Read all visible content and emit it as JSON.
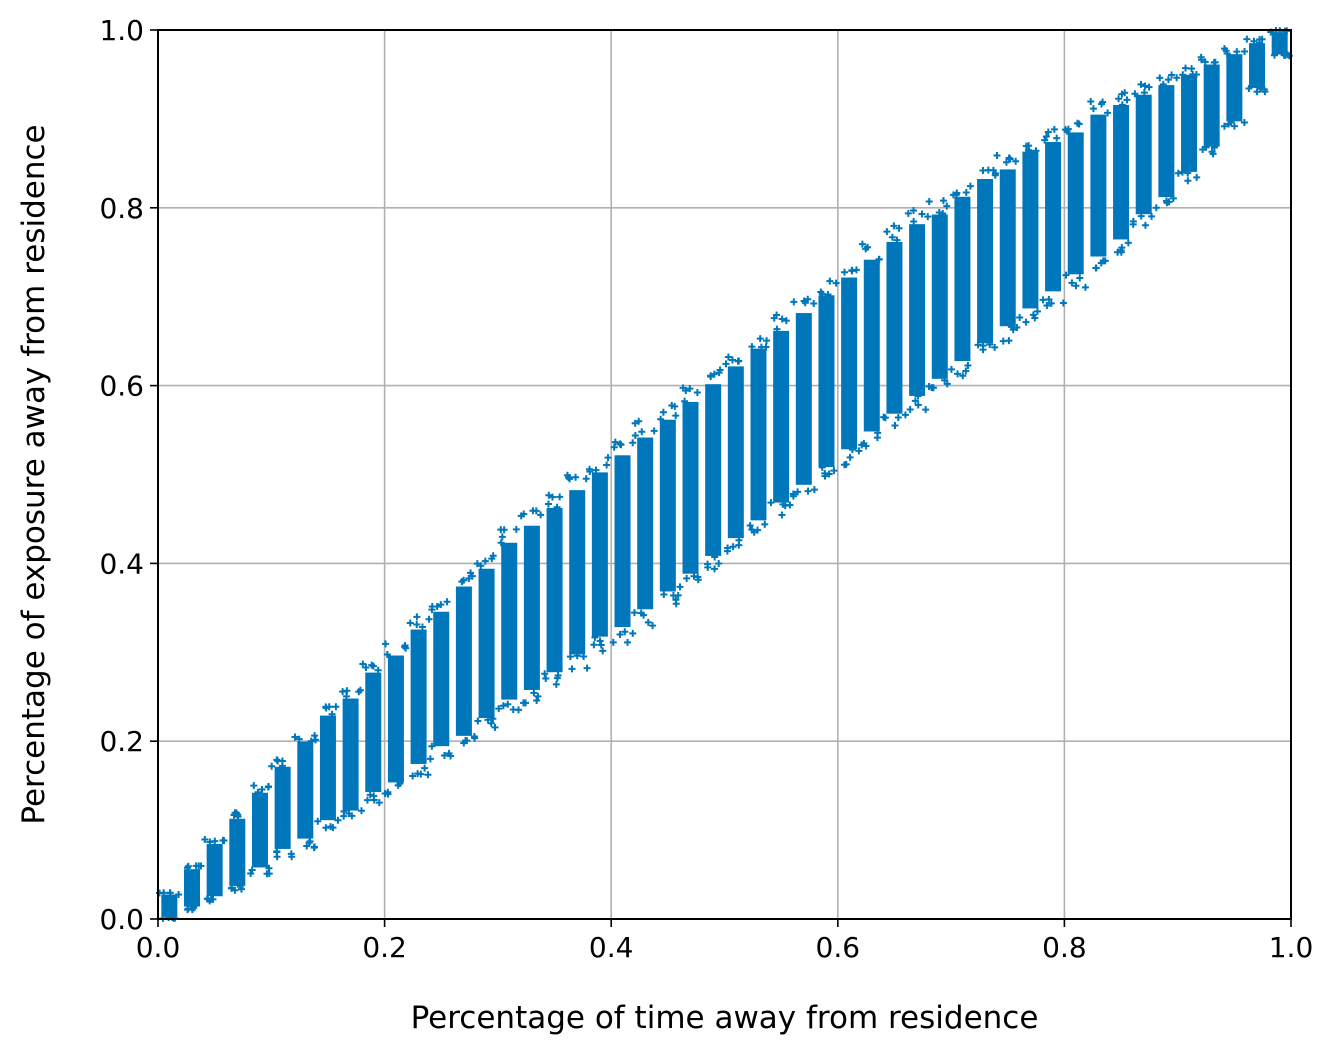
{
  "chart_data": {
    "type": "scatter",
    "title": "",
    "xlabel": "Percentage of time away from residence",
    "ylabel": "Percentage of exposure away from residence",
    "xlim": [
      0.0,
      1.0
    ],
    "ylim": [
      0.0,
      1.0
    ],
    "xticks": [
      0.0,
      0.2,
      0.4,
      0.6,
      0.8,
      1.0
    ],
    "yticks": [
      0.0,
      0.2,
      0.4,
      0.6,
      0.8,
      1.0
    ],
    "xtick_labels": [
      "0.0",
      "0.2",
      "0.4",
      "0.6",
      "0.8",
      "1.0"
    ],
    "ytick_labels": [
      "0.0",
      "0.2",
      "0.4",
      "0.6",
      "0.8",
      "1.0"
    ],
    "grid": true,
    "legend": "none",
    "marker": "+",
    "series": [
      {
        "color": "#0077bb",
        "description_of_distribution": "",
        "x": [
          0.01,
          0.03,
          0.05,
          0.07,
          0.09,
          0.11,
          0.13,
          0.15,
          0.17,
          0.19,
          0.21,
          0.23,
          0.25,
          0.27,
          0.29,
          0.31,
          0.33,
          0.35,
          0.37,
          0.39,
          0.41,
          0.43,
          0.45,
          0.47,
          0.49,
          0.51,
          0.53,
          0.55,
          0.57,
          0.59,
          0.61,
          0.63,
          0.65,
          0.67,
          0.69,
          0.71,
          0.73,
          0.75,
          0.77,
          0.79,
          0.81,
          0.83,
          0.85,
          0.87,
          0.89,
          0.91,
          0.93,
          0.95,
          0.97,
          0.99
        ],
        "y_min": [
          0.0,
          0.01,
          0.02,
          0.03,
          0.05,
          0.07,
          0.08,
          0.1,
          0.11,
          0.13,
          0.14,
          0.16,
          0.18,
          0.19,
          0.21,
          0.23,
          0.24,
          0.26,
          0.28,
          0.3,
          0.31,
          0.33,
          0.35,
          0.37,
          0.39,
          0.41,
          0.43,
          0.45,
          0.47,
          0.49,
          0.51,
          0.53,
          0.55,
          0.57,
          0.59,
          0.61,
          0.63,
          0.65,
          0.67,
          0.69,
          0.71,
          0.73,
          0.75,
          0.78,
          0.8,
          0.83,
          0.86,
          0.89,
          0.93,
          0.97
        ],
        "y_max": [
          0.03,
          0.06,
          0.09,
          0.12,
          0.15,
          0.18,
          0.21,
          0.24,
          0.26,
          0.29,
          0.31,
          0.34,
          0.36,
          0.39,
          0.41,
          0.44,
          0.46,
          0.48,
          0.5,
          0.52,
          0.54,
          0.56,
          0.58,
          0.6,
          0.62,
          0.64,
          0.66,
          0.68,
          0.7,
          0.72,
          0.74,
          0.76,
          0.78,
          0.8,
          0.81,
          0.83,
          0.85,
          0.86,
          0.88,
          0.89,
          0.9,
          0.92,
          0.93,
          0.94,
          0.95,
          0.96,
          0.97,
          0.98,
          0.99,
          1.0
        ]
      }
    ]
  }
}
